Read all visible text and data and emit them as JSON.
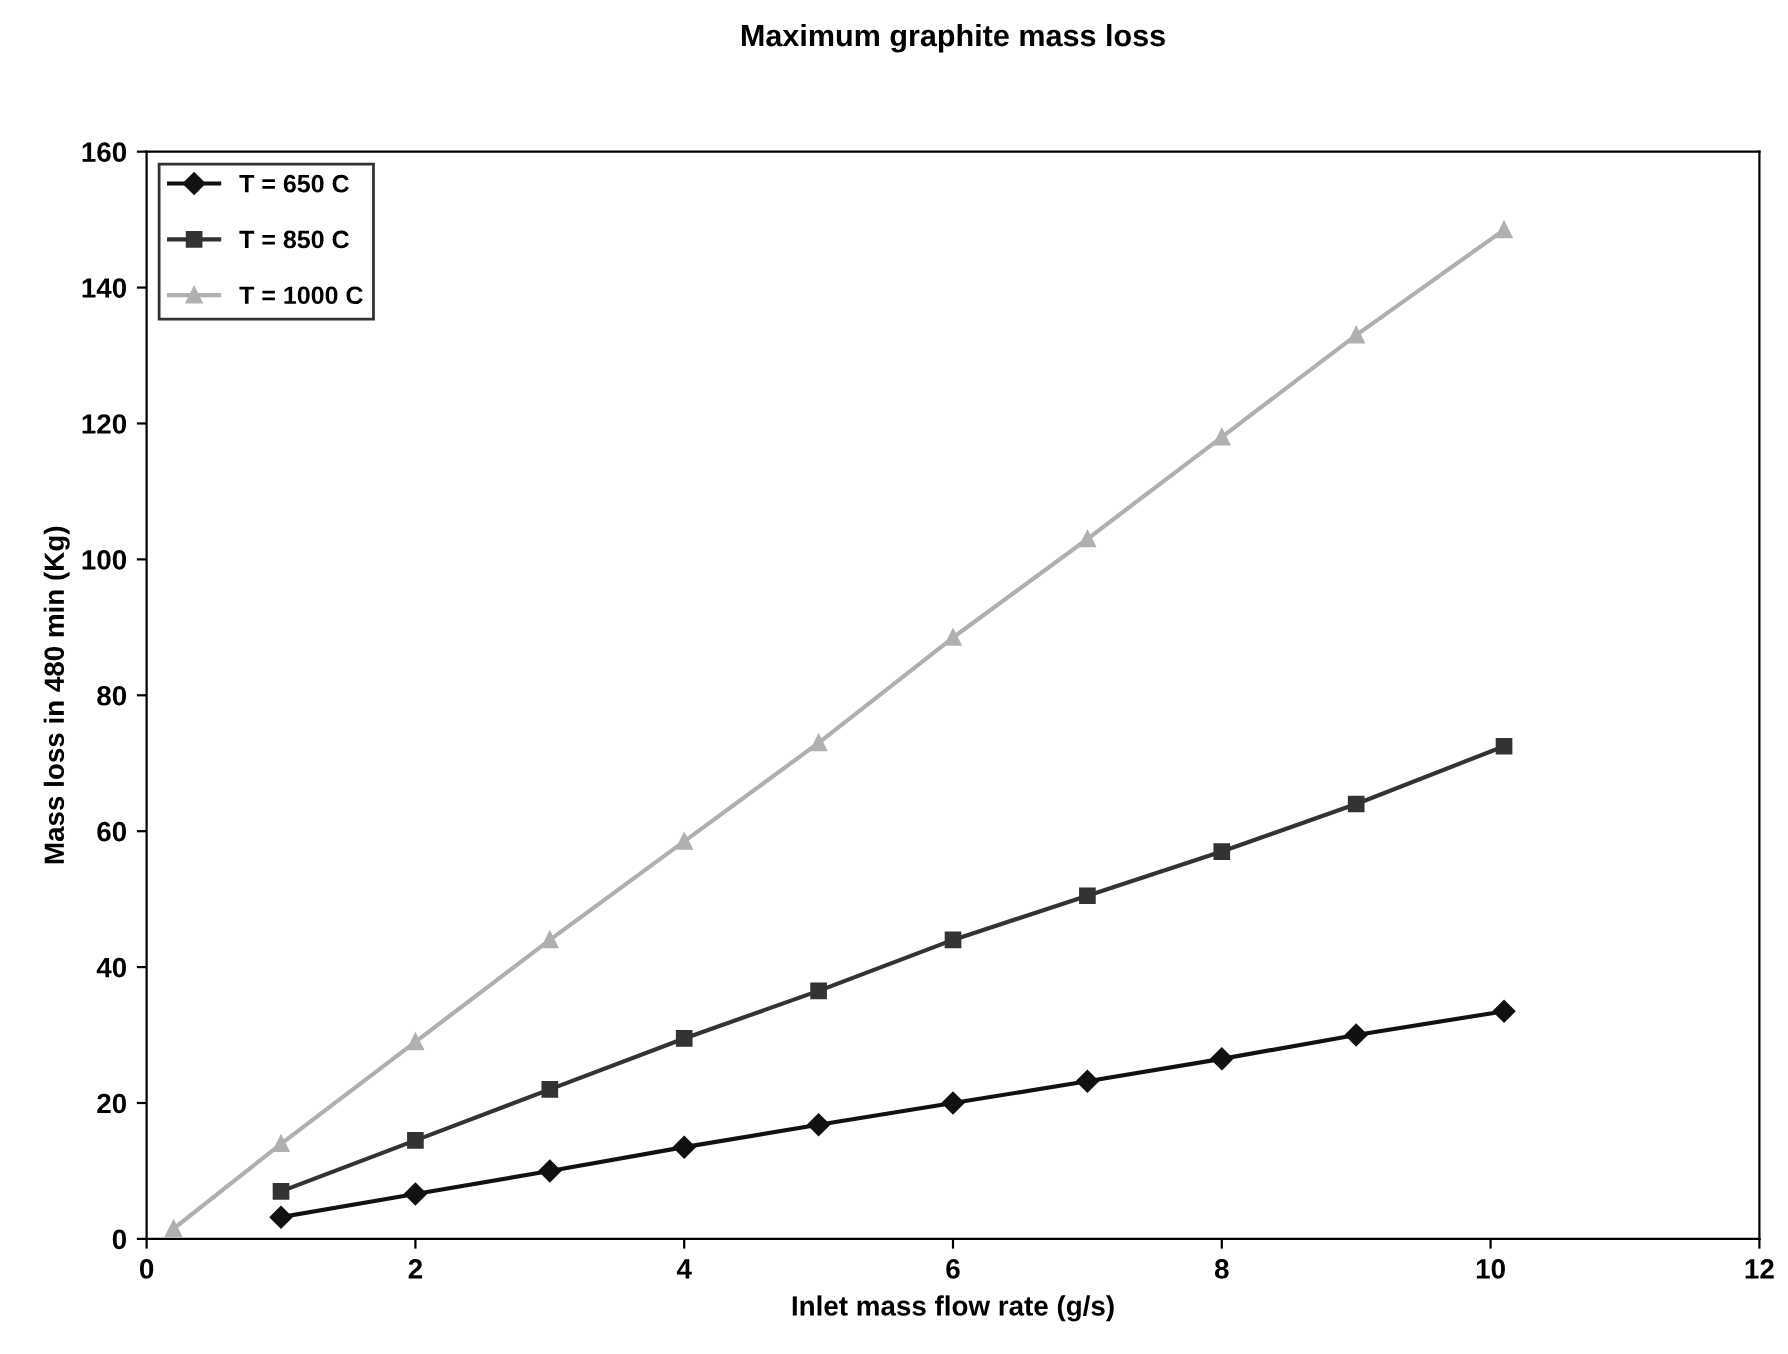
{
  "chart_data": {
    "type": "line",
    "title": "Maximum graphite mass loss",
    "xlabel": "Inlet mass flow rate (g/s)",
    "ylabel": "Mass loss in 480 min (Kg)",
    "x": [
      0.2,
      1,
      2,
      3,
      4,
      5,
      6,
      7,
      8,
      9,
      10.1
    ],
    "series": [
      {
        "name": "T = 650 C",
        "color": "#111111",
        "marker": "diamond",
        "values": [
          null,
          3.2,
          6.6,
          10,
          13.5,
          16.8,
          20,
          23.2,
          26.5,
          30,
          33.5
        ]
      },
      {
        "name": "T = 850 C",
        "color": "#333333",
        "marker": "square",
        "values": [
          null,
          7,
          14.5,
          22,
          29.5,
          36.5,
          44,
          50.5,
          57,
          64,
          72.5
        ]
      },
      {
        "name": "T = 1000 C",
        "color": "#b0b0b0",
        "marker": "triangle",
        "values": [
          1.5,
          14,
          29,
          44,
          58.5,
          73,
          88.5,
          103,
          118,
          133,
          148.5
        ]
      }
    ],
    "xlim": [
      0,
      12
    ],
    "xticks": [
      0,
      2,
      4,
      6,
      8,
      10,
      12
    ],
    "ylim": [
      0,
      160
    ],
    "yticks": [
      0,
      20,
      40,
      60,
      80,
      100,
      120,
      140,
      160
    ],
    "grid": false,
    "legend": "top left",
    "line_style": "solid"
  }
}
